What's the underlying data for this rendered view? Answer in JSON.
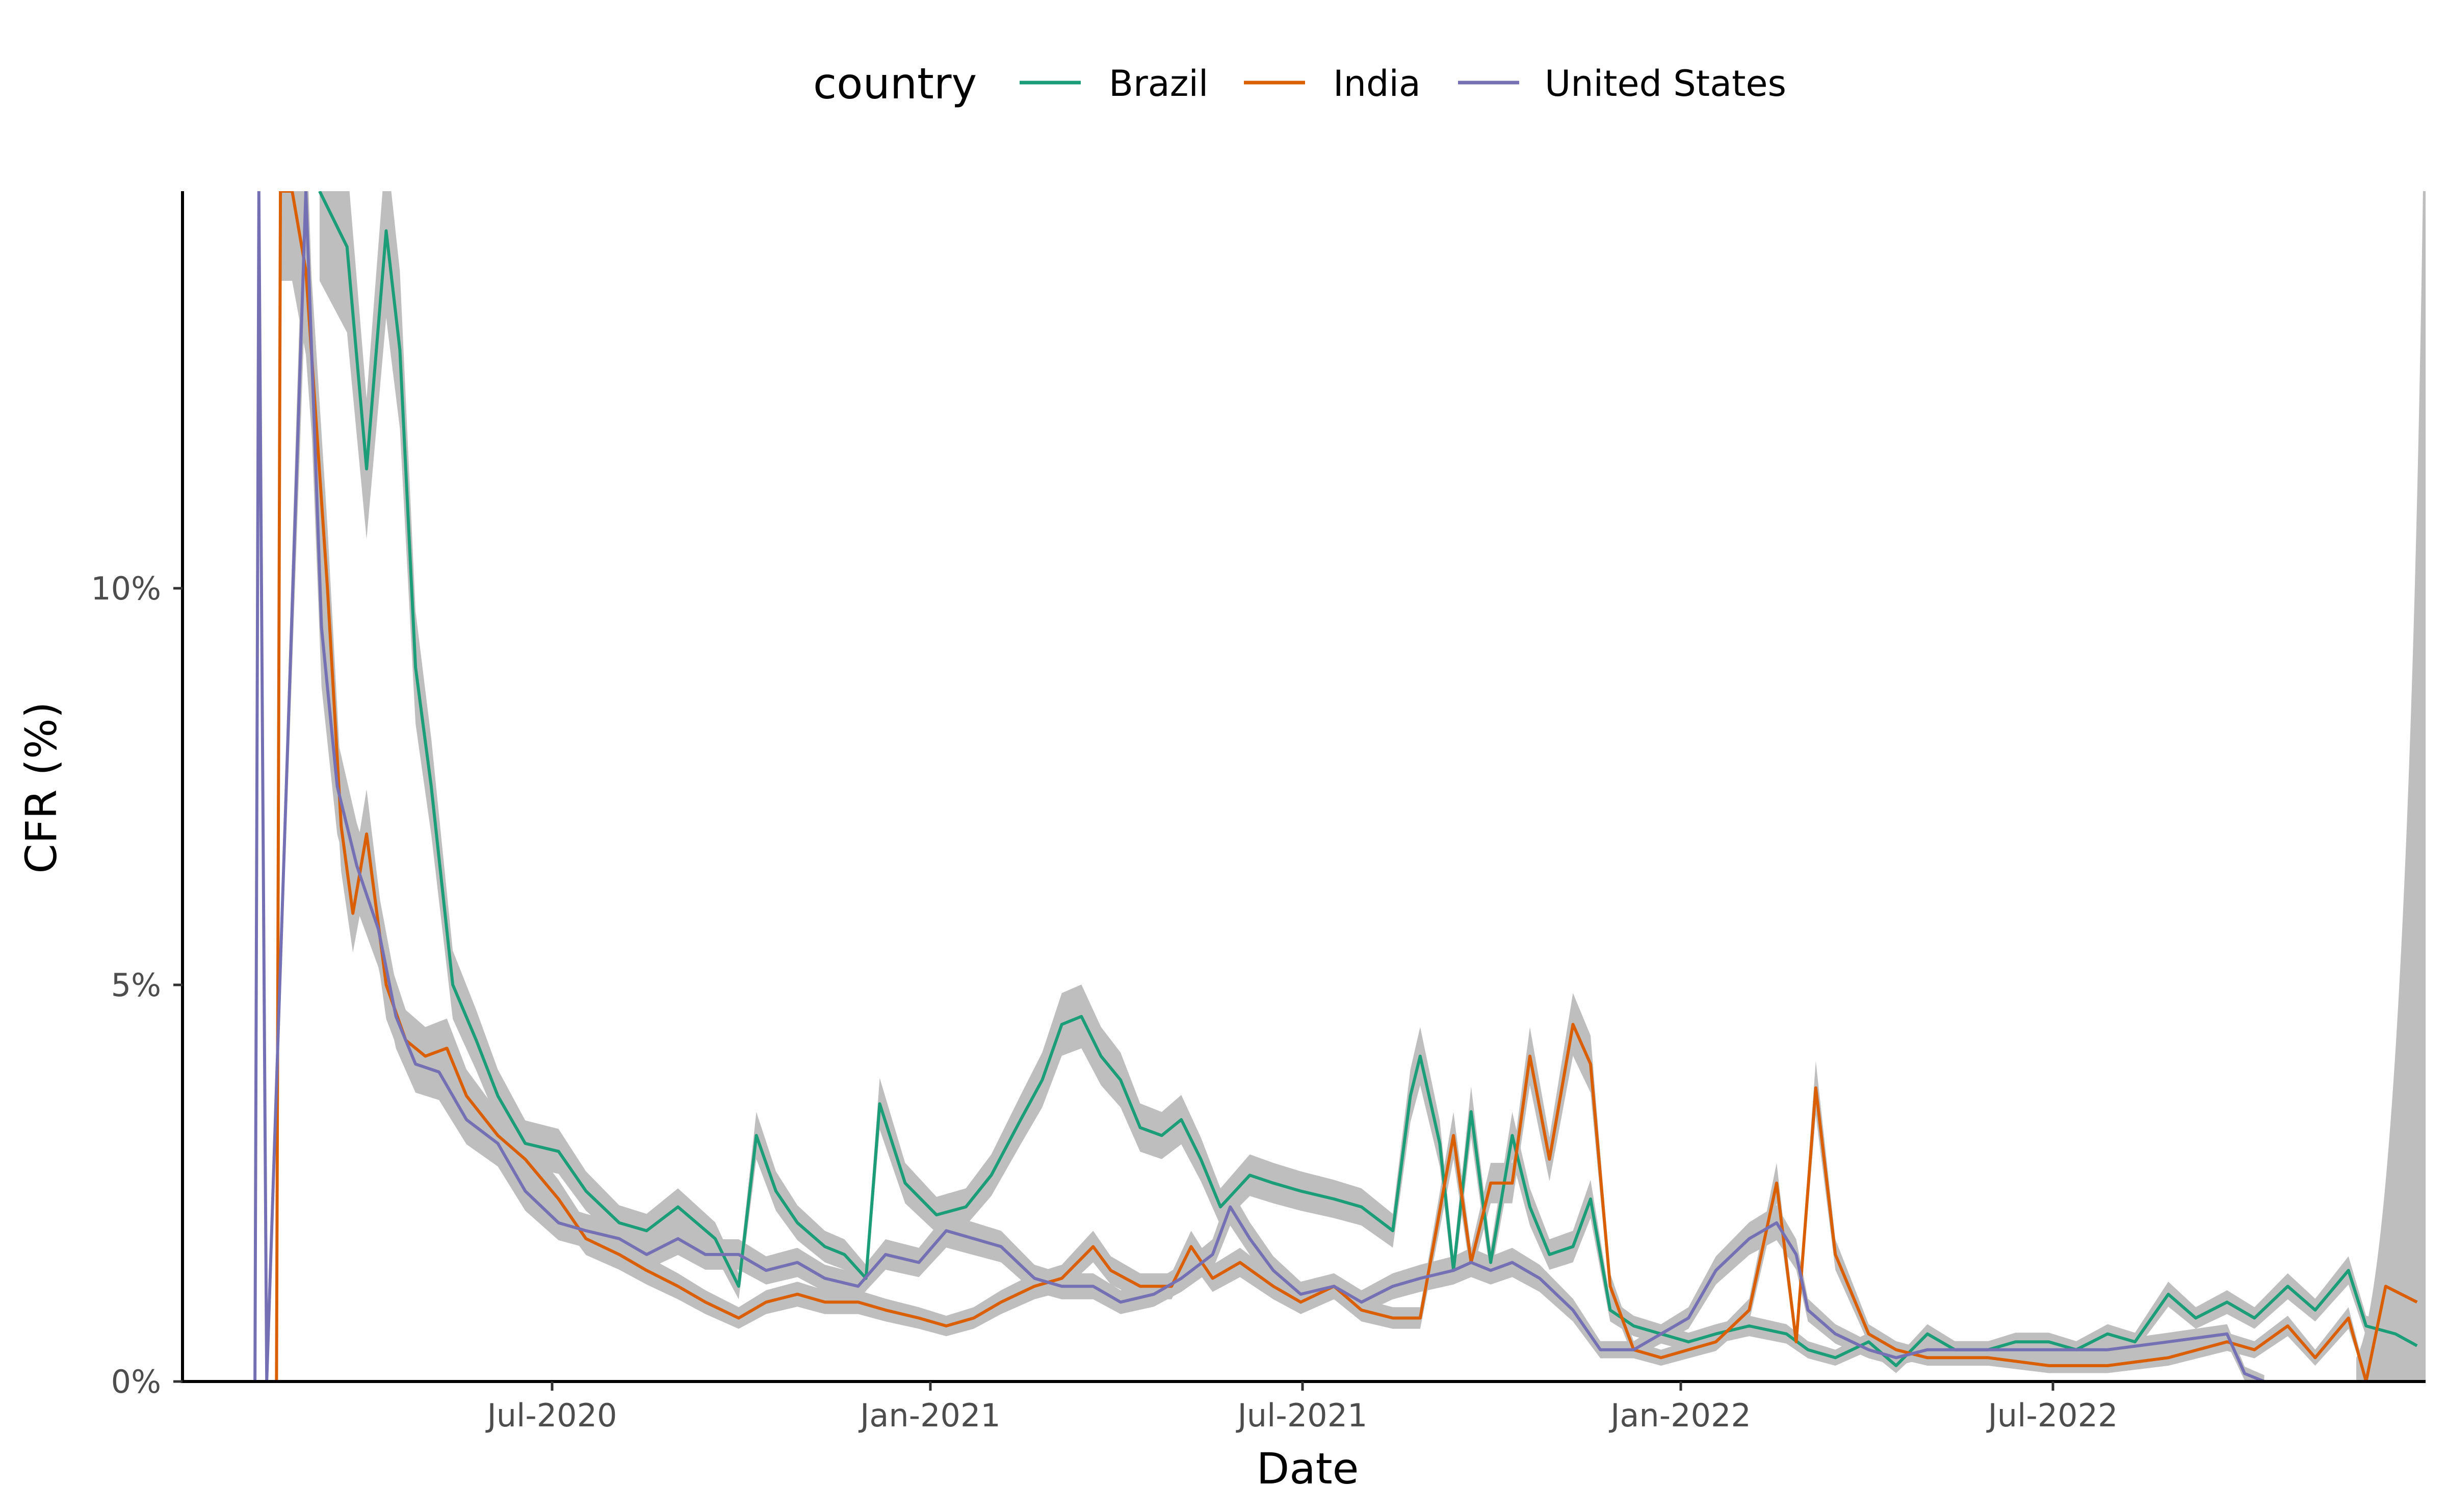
{
  "chart_data": {
    "type": "line",
    "xlabel": "Date",
    "ylabel": "CFR (%)",
    "x_ticks": [
      "Jul-2020",
      "Jan-2021",
      "Jul-2021",
      "Jan-2022",
      "Jul-2022"
    ],
    "y_ticks": [
      "0%",
      "5%",
      "10%"
    ],
    "ylim": [
      0,
      15
    ],
    "xlim": [
      "2020-01-22",
      "2023-03-09"
    ],
    "grid": false,
    "legend": {
      "title": "country",
      "position": "top"
    },
    "confidence_band_color": "#bebebe",
    "series": [
      {
        "name": "Brazil",
        "color": "#1b9e77",
        "points": [
          [
            "2020-04-01",
            15.0
          ],
          [
            "2020-04-15",
            14.3
          ],
          [
            "2020-04-25",
            11.5
          ],
          [
            "2020-05-05",
            14.5
          ],
          [
            "2020-05-12",
            13.0
          ],
          [
            "2020-05-20",
            9.0
          ],
          [
            "2020-05-28",
            7.5
          ],
          [
            "2020-06-08",
            5.0
          ],
          [
            "2020-06-20",
            4.3
          ],
          [
            "2020-07-01",
            3.6
          ],
          [
            "2020-07-15",
            3.0
          ],
          [
            "2020-08-01",
            2.9
          ],
          [
            "2020-08-15",
            2.4
          ],
          [
            "2020-09-01",
            2.0
          ],
          [
            "2020-09-15",
            1.9
          ],
          [
            "2020-10-01",
            2.2
          ],
          [
            "2020-10-20",
            1.8
          ],
          [
            "2020-11-01",
            1.2
          ],
          [
            "2020-11-10",
            3.1
          ],
          [
            "2020-11-20",
            2.4
          ],
          [
            "2020-12-01",
            2.0
          ],
          [
            "2020-12-15",
            1.7
          ],
          [
            "2020-12-25",
            1.6
          ],
          [
            "2021-01-05",
            1.3
          ],
          [
            "2021-01-12",
            3.5
          ],
          [
            "2021-01-25",
            2.5
          ],
          [
            "2021-02-10",
            2.1
          ],
          [
            "2021-02-25",
            2.2
          ],
          [
            "2021-03-10",
            2.6
          ],
          [
            "2021-03-25",
            3.3
          ],
          [
            "2021-04-05",
            3.8
          ],
          [
            "2021-04-15",
            4.5
          ],
          [
            "2021-04-25",
            4.6
          ],
          [
            "2021-05-05",
            4.1
          ],
          [
            "2021-05-15",
            3.8
          ],
          [
            "2021-05-25",
            3.2
          ],
          [
            "2021-06-05",
            3.1
          ],
          [
            "2021-06-15",
            3.3
          ],
          [
            "2021-06-25",
            2.8
          ],
          [
            "2021-07-05",
            2.2
          ],
          [
            "2021-07-20",
            2.6
          ],
          [
            "2021-08-01",
            2.5
          ],
          [
            "2021-08-15",
            2.4
          ],
          [
            "2021-09-01",
            2.3
          ],
          [
            "2021-09-15",
            2.2
          ],
          [
            "2021-10-01",
            1.9
          ],
          [
            "2021-10-10",
            3.6
          ],
          [
            "2021-10-15",
            4.1
          ],
          [
            "2021-10-25",
            3.0
          ],
          [
            "2021-11-01",
            1.4
          ],
          [
            "2021-11-10",
            3.4
          ],
          [
            "2021-11-20",
            1.5
          ],
          [
            "2021-12-01",
            3.1
          ],
          [
            "2021-12-10",
            2.2
          ],
          [
            "2021-12-20",
            1.6
          ],
          [
            "2022-01-01",
            1.7
          ],
          [
            "2022-01-10",
            2.3
          ],
          [
            "2022-01-20",
            0.9
          ],
          [
            "2022-02-01",
            0.7
          ],
          [
            "2022-02-15",
            0.6
          ],
          [
            "2022-03-01",
            0.5
          ],
          [
            "2022-03-15",
            0.6
          ],
          [
            "2022-04-01",
            0.7
          ],
          [
            "2022-04-20",
            0.6
          ],
          [
            "2022-05-01",
            0.4
          ],
          [
            "2022-05-15",
            0.3
          ],
          [
            "2022-06-01",
            0.5
          ],
          [
            "2022-06-15",
            0.2
          ],
          [
            "2022-07-01",
            0.6
          ],
          [
            "2022-07-15",
            0.4
          ],
          [
            "2022-08-01",
            0.4
          ],
          [
            "2022-08-15",
            0.5
          ],
          [
            "2022-09-01",
            0.5
          ],
          [
            "2022-09-15",
            0.4
          ],
          [
            "2022-10-01",
            0.6
          ],
          [
            "2022-10-15",
            0.5
          ],
          [
            "2022-11-01",
            1.1
          ],
          [
            "2022-11-15",
            0.8
          ],
          [
            "2022-12-01",
            1.0
          ],
          [
            "2022-12-15",
            0.8
          ],
          [
            "2023-01-01",
            1.2
          ],
          [
            "2023-01-15",
            0.9
          ],
          [
            "2023-02-01",
            1.4
          ],
          [
            "2023-02-10",
            0.7
          ],
          [
            "2023-02-25",
            0.6
          ],
          [
            "2023-03-08",
            0.45
          ]
        ]
      },
      {
        "name": "India",
        "color": "#d95f02",
        "points": [
          [
            "2020-03-10",
            0.0
          ],
          [
            "2020-03-12",
            15.0
          ],
          [
            "2020-03-18",
            15.0
          ],
          [
            "2020-03-25",
            14.0
          ],
          [
            "2020-04-05",
            10.0
          ],
          [
            "2020-04-12",
            7.0
          ],
          [
            "2020-04-18",
            5.9
          ],
          [
            "2020-04-25",
            6.9
          ],
          [
            "2020-05-05",
            5.0
          ],
          [
            "2020-05-15",
            4.3
          ],
          [
            "2020-05-25",
            4.1
          ],
          [
            "2020-06-05",
            4.2
          ],
          [
            "2020-06-15",
            3.6
          ],
          [
            "2020-07-01",
            3.1
          ],
          [
            "2020-07-15",
            2.8
          ],
          [
            "2020-08-01",
            2.3
          ],
          [
            "2020-08-15",
            1.8
          ],
          [
            "2020-09-01",
            1.6
          ],
          [
            "2020-09-15",
            1.4
          ],
          [
            "2020-10-01",
            1.2
          ],
          [
            "2020-10-15",
            1.0
          ],
          [
            "2020-11-01",
            0.8
          ],
          [
            "2020-11-15",
            1.0
          ],
          [
            "2020-12-01",
            1.1
          ],
          [
            "2020-12-15",
            1.0
          ],
          [
            "2021-01-01",
            1.0
          ],
          [
            "2021-01-15",
            0.9
          ],
          [
            "2021-02-01",
            0.8
          ],
          [
            "2021-02-15",
            0.7
          ],
          [
            "2021-03-01",
            0.8
          ],
          [
            "2021-03-15",
            1.0
          ],
          [
            "2021-04-01",
            1.2
          ],
          [
            "2021-04-15",
            1.3
          ],
          [
            "2021-05-01",
            1.7
          ],
          [
            "2021-05-10",
            1.4
          ],
          [
            "2021-05-25",
            1.2
          ],
          [
            "2021-06-10",
            1.2
          ],
          [
            "2021-06-20",
            1.7
          ],
          [
            "2021-07-01",
            1.3
          ],
          [
            "2021-07-15",
            1.5
          ],
          [
            "2021-08-01",
            1.2
          ],
          [
            "2021-08-15",
            1.0
          ],
          [
            "2021-09-01",
            1.2
          ],
          [
            "2021-09-15",
            0.9
          ],
          [
            "2021-10-01",
            0.8
          ],
          [
            "2021-10-15",
            0.8
          ],
          [
            "2021-11-01",
            3.1
          ],
          [
            "2021-11-10",
            1.5
          ],
          [
            "2021-11-20",
            2.5
          ],
          [
            "2021-12-01",
            2.5
          ],
          [
            "2021-12-10",
            4.1
          ],
          [
            "2021-12-20",
            2.8
          ],
          [
            "2022-01-01",
            4.5
          ],
          [
            "2022-01-10",
            4.0
          ],
          [
            "2022-01-20",
            1.2
          ],
          [
            "2022-02-01",
            0.4
          ],
          [
            "2022-02-15",
            0.3
          ],
          [
            "2022-03-01",
            0.4
          ],
          [
            "2022-03-15",
            0.5
          ],
          [
            "2022-04-01",
            0.9
          ],
          [
            "2022-04-15",
            2.5
          ],
          [
            "2022-04-25",
            0.5
          ],
          [
            "2022-05-05",
            3.7
          ],
          [
            "2022-05-15",
            1.6
          ],
          [
            "2022-06-01",
            0.6
          ],
          [
            "2022-06-15",
            0.4
          ],
          [
            "2022-07-01",
            0.3
          ],
          [
            "2022-08-01",
            0.3
          ],
          [
            "2022-09-01",
            0.2
          ],
          [
            "2022-10-01",
            0.2
          ],
          [
            "2022-11-01",
            0.3
          ],
          [
            "2022-12-01",
            0.5
          ],
          [
            "2022-12-15",
            0.4
          ],
          [
            "2023-01-01",
            0.7
          ],
          [
            "2023-01-15",
            0.3
          ],
          [
            "2023-02-01",
            0.8
          ],
          [
            "2023-02-10",
            0.0
          ],
          [
            "2023-02-20",
            1.2
          ],
          [
            "2023-03-08",
            1.0
          ]
        ]
      },
      {
        "name": "United States",
        "color": "#7570b3",
        "points": [
          [
            "2020-02-28",
            0.0
          ],
          [
            "2020-03-01",
            15.0
          ],
          [
            "2020-03-05",
            0.0
          ],
          [
            "2020-03-25",
            15.0
          ],
          [
            "2020-04-02",
            9.5
          ],
          [
            "2020-04-10",
            7.5
          ],
          [
            "2020-04-20",
            6.5
          ],
          [
            "2020-05-01",
            5.7
          ],
          [
            "2020-05-10",
            4.6
          ],
          [
            "2020-05-20",
            4.0
          ],
          [
            "2020-06-01",
            3.9
          ],
          [
            "2020-06-15",
            3.3
          ],
          [
            "2020-07-01",
            3.0
          ],
          [
            "2020-07-15",
            2.4
          ],
          [
            "2020-08-01",
            2.0
          ],
          [
            "2020-08-15",
            1.9
          ],
          [
            "2020-09-01",
            1.8
          ],
          [
            "2020-09-15",
            1.6
          ],
          [
            "2020-10-01",
            1.8
          ],
          [
            "2020-10-15",
            1.6
          ],
          [
            "2020-11-01",
            1.6
          ],
          [
            "2020-11-15",
            1.4
          ],
          [
            "2020-12-01",
            1.5
          ],
          [
            "2020-12-15",
            1.3
          ],
          [
            "2021-01-01",
            1.2
          ],
          [
            "2021-01-15",
            1.6
          ],
          [
            "2021-02-01",
            1.5
          ],
          [
            "2021-02-15",
            1.9
          ],
          [
            "2021-03-01",
            1.8
          ],
          [
            "2021-03-15",
            1.7
          ],
          [
            "2021-04-01",
            1.3
          ],
          [
            "2021-04-15",
            1.2
          ],
          [
            "2021-05-01",
            1.2
          ],
          [
            "2021-05-15",
            1.0
          ],
          [
            "2021-06-01",
            1.1
          ],
          [
            "2021-06-15",
            1.3
          ],
          [
            "2021-07-01",
            1.6
          ],
          [
            "2021-07-10",
            2.2
          ],
          [
            "2021-07-20",
            1.8
          ],
          [
            "2021-08-01",
            1.4
          ],
          [
            "2021-08-15",
            1.1
          ],
          [
            "2021-09-01",
            1.2
          ],
          [
            "2021-09-15",
            1.0
          ],
          [
            "2021-10-01",
            1.2
          ],
          [
            "2021-10-15",
            1.3
          ],
          [
            "2021-11-01",
            1.4
          ],
          [
            "2021-11-10",
            1.5
          ],
          [
            "2021-11-20",
            1.4
          ],
          [
            "2021-12-01",
            1.5
          ],
          [
            "2021-12-15",
            1.3
          ],
          [
            "2022-01-01",
            0.9
          ],
          [
            "2022-01-15",
            0.4
          ],
          [
            "2022-02-01",
            0.4
          ],
          [
            "2022-02-15",
            0.6
          ],
          [
            "2022-03-01",
            0.8
          ],
          [
            "2022-03-15",
            1.4
          ],
          [
            "2022-04-01",
            1.8
          ],
          [
            "2022-04-15",
            2.0
          ],
          [
            "2022-04-25",
            1.6
          ],
          [
            "2022-05-01",
            0.9
          ],
          [
            "2022-05-15",
            0.6
          ],
          [
            "2022-06-01",
            0.4
          ],
          [
            "2022-06-15",
            0.3
          ],
          [
            "2022-07-01",
            0.4
          ],
          [
            "2022-08-01",
            0.4
          ],
          [
            "2022-09-01",
            0.4
          ],
          [
            "2022-10-01",
            0.4
          ],
          [
            "2022-11-01",
            0.5
          ],
          [
            "2022-12-01",
            0.6
          ],
          [
            "2022-12-10",
            0.1
          ],
          [
            "2022-12-20",
            0.0
          ]
        ]
      }
    ]
  }
}
